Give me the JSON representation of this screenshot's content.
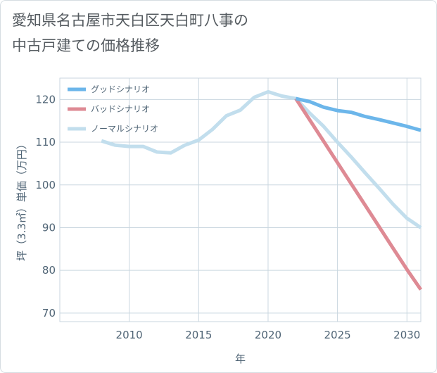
{
  "chart_data": {
    "type": "line",
    "title_lines": [
      "愛知県名古屋市天白区天白町八事の",
      "中古戸建ての価格推移"
    ],
    "xlabel": "年",
    "ylabel": "坪（3.3㎡）単価（万円）",
    "xlim": [
      2005,
      2031
    ],
    "ylim": [
      68,
      125
    ],
    "xticks": [
      2010,
      2015,
      2020,
      2025,
      2030
    ],
    "yticks": [
      70,
      80,
      90,
      100,
      110,
      120
    ],
    "grid": true,
    "legend_position": "top-left",
    "series": [
      {
        "name": "グッドシナリオ",
        "color": "#6cb6ea",
        "x": [
          2022,
          2023,
          2024,
          2025,
          2026,
          2027,
          2028,
          2029,
          2030,
          2031
        ],
        "y": [
          120.2,
          119.5,
          118.2,
          117.4,
          117.0,
          116.0,
          115.3,
          114.5,
          113.7,
          112.8
        ]
      },
      {
        "name": "バッドシナリオ",
        "color": "#de8a94",
        "x": [
          2022,
          2023,
          2024,
          2025,
          2026,
          2027,
          2028,
          2029,
          2030,
          2031
        ],
        "y": [
          120.2,
          115.2,
          110.2,
          105.2,
          100.2,
          95.2,
          90.2,
          85.2,
          80.2,
          75.5
        ]
      },
      {
        "name": "ノーマルシナリオ",
        "color": "#c2deed",
        "x": [
          2008,
          2009,
          2010,
          2011,
          2012,
          2013,
          2014,
          2015,
          2016,
          2017,
          2018,
          2019,
          2020,
          2021,
          2022,
          2023,
          2024,
          2025,
          2026,
          2027,
          2028,
          2029,
          2030,
          2031
        ],
        "y": [
          110.3,
          109.3,
          109.0,
          109.0,
          107.7,
          107.5,
          109.3,
          110.5,
          113.0,
          116.2,
          117.5,
          120.5,
          121.8,
          120.8,
          120.2,
          116.8,
          113.7,
          110.0,
          106.5,
          102.8,
          99.2,
          95.5,
          92.2,
          90.0
        ]
      }
    ]
  }
}
